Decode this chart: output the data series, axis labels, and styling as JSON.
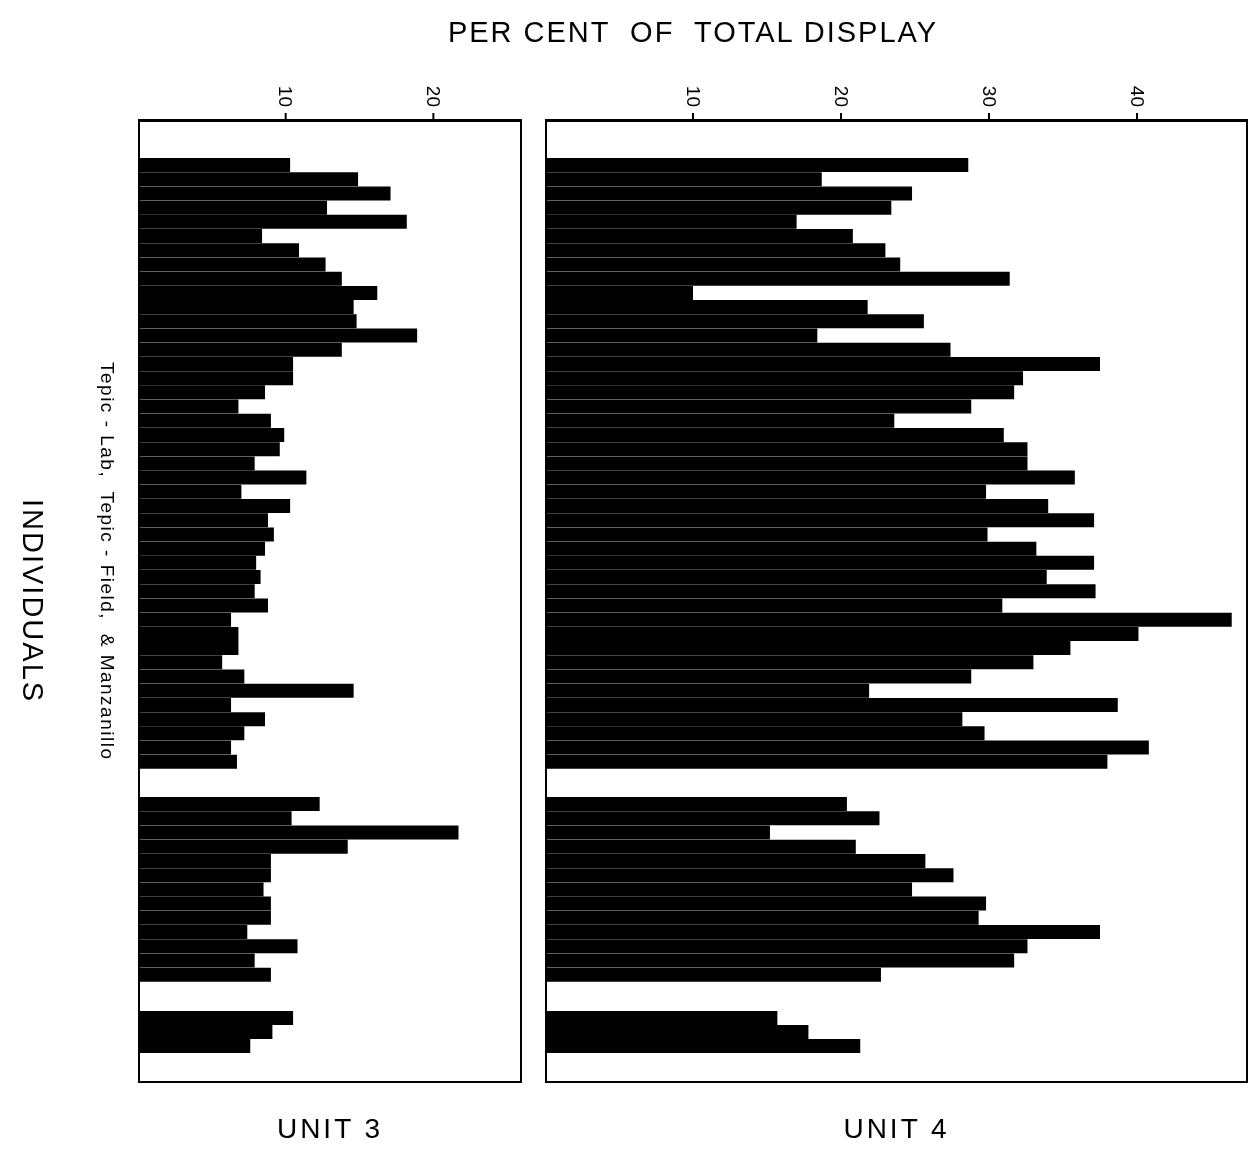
{
  "chart_data": [
    {
      "type": "bar",
      "orientation": "horizontal",
      "xlabel": "PER CENT  OF  TOTAL DISPLAY",
      "ylabel": "INDIVIDUALS",
      "annotations": [
        "Tepic - Lab,  Tepic - Field,  & Manzanillo"
      ],
      "categories": [
        null,
        null,
        null,
        null,
        null,
        null,
        null,
        null,
        null,
        null,
        null,
        null,
        null,
        null,
        null,
        null,
        null,
        null,
        null,
        null,
        null,
        null,
        null,
        null,
        null,
        null,
        null,
        null,
        null,
        null,
        null,
        null,
        null,
        null,
        null,
        null,
        null,
        null,
        null,
        null,
        null,
        null,
        null
      ],
      "values": [
        10.3,
        14.9,
        17.1,
        12.8,
        18.2,
        8.4,
        10.9,
        12.7,
        13.8,
        16.2,
        14.6,
        14.8,
        18.9,
        13.8,
        10.5,
        10.5,
        8.6,
        6.8,
        9.0,
        9.9,
        9.6,
        7.9,
        11.4,
        7.0,
        10.3,
        8.8,
        9.2,
        8.6,
        8.0,
        8.3,
        7.9,
        8.8,
        6.3,
        6.8,
        6.8,
        5.7,
        7.2,
        14.6,
        6.3,
        8.6,
        7.2,
        6.3,
        6.7
      ],
      "color": "#000000",
      "xlim": [
        0,
        26
      ],
      "xticks": [
        10,
        20
      ],
      "tick_labels": "x"
    },
    {
      "type": "bar",
      "orientation": "horizontal",
      "categories": [
        null,
        null,
        null,
        null,
        null,
        null,
        null,
        null,
        null,
        null,
        null,
        null,
        null
      ],
      "values": [
        12.3,
        10.4,
        21.7,
        14.2,
        9.0,
        9.0,
        8.5,
        9.0,
        9.0,
        7.4,
        10.8,
        7.9,
        9.0
      ],
      "color": "#000000",
      "xlim": [
        0,
        26
      ],
      "xticks": [
        10,
        20
      ],
      "tick_labels": false
    },
    {
      "type": "bar",
      "orientation": "horizontal",
      "title": "UNIT 3",
      "categories": [
        null,
        null,
        null
      ],
      "values": [
        10.5,
        9.1,
        7.6
      ],
      "color": "#000000",
      "xlim": [
        0,
        26
      ],
      "xticks": [
        10,
        20
      ],
      "tick_labels": false
    },
    {
      "type": "bar",
      "orientation": "horizontal",
      "categories": [
        null,
        null,
        null,
        null,
        null,
        null,
        null,
        null,
        null,
        null,
        null,
        null,
        null,
        null,
        null,
        null,
        null,
        null,
        null,
        null,
        null,
        null,
        null,
        null,
        null,
        null,
        null,
        null,
        null,
        null,
        null,
        null,
        null,
        null,
        null,
        null,
        null,
        null,
        null,
        null,
        null,
        null,
        null
      ],
      "values": [
        28.6,
        18.7,
        24.8,
        23.4,
        17.0,
        20.8,
        23.0,
        24.0,
        31.4,
        10.0,
        21.8,
        25.6,
        18.4,
        27.4,
        37.5,
        32.3,
        31.7,
        28.8,
        23.6,
        31.0,
        32.6,
        32.6,
        35.8,
        29.8,
        34.0,
        37.1,
        29.9,
        33.2,
        37.1,
        33.9,
        37.2,
        30.9,
        46.4,
        40.1,
        35.5,
        33.0,
        28.8,
        21.9,
        38.7,
        28.2,
        29.7,
        40.8,
        38.0
      ],
      "color": "#000000",
      "xlim": [
        0,
        47.5
      ],
      "xticks": [
        10,
        20,
        30,
        40
      ],
      "tick_labels": "x"
    },
    {
      "type": "bar",
      "orientation": "horizontal",
      "categories": [
        null,
        null,
        null,
        null,
        null,
        null,
        null,
        null,
        null,
        null,
        null,
        null,
        null
      ],
      "values": [
        20.4,
        22.6,
        15.2,
        21.0,
        25.7,
        27.6,
        24.8,
        29.8,
        29.3,
        37.5,
        32.6,
        31.7,
        22.7
      ],
      "color": "#000000",
      "xlim": [
        0,
        47.5
      ],
      "xticks": [
        10,
        20,
        30,
        40
      ],
      "tick_labels": false
    },
    {
      "type": "bar",
      "orientation": "horizontal",
      "title": "UNIT 4",
      "categories": [
        null,
        null,
        null
      ],
      "values": [
        15.7,
        17.8,
        21.3
      ],
      "color": "#000000",
      "xlim": [
        0,
        47.5
      ],
      "xticks": [
        10,
        20,
        30,
        40
      ],
      "tick_labels": false
    }
  ]
}
